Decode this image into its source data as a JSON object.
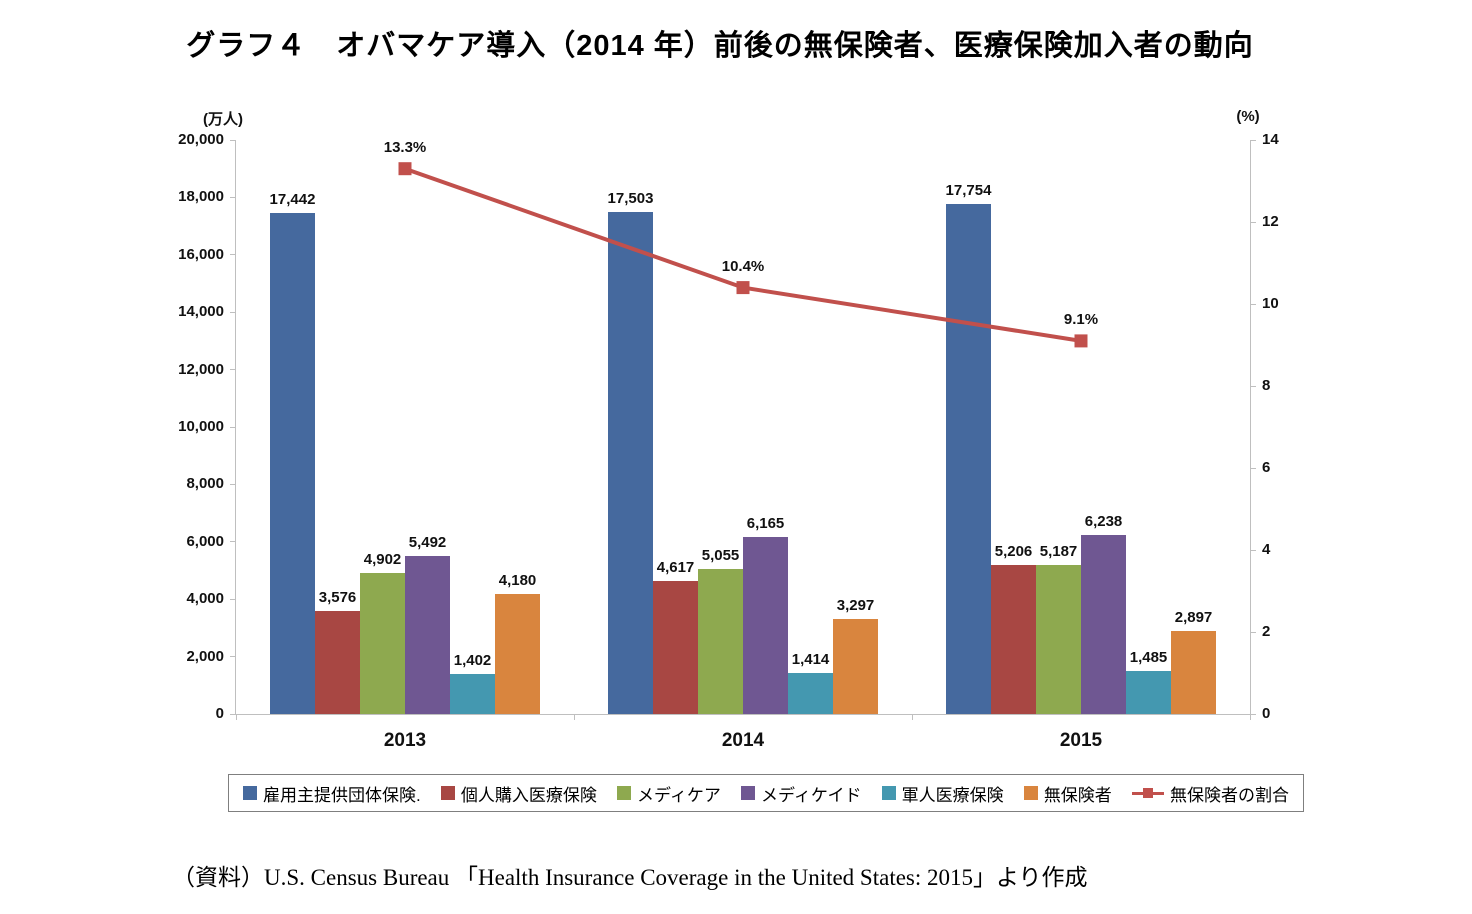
{
  "title": "グラフ４　オバマケア導入（2014 年）前後の無保険者、医療保険加入者の動向",
  "source": "（資料）U.S. Census Bureau 「Health Insurance Coverage in the United States: 2015」より作成",
  "chart_data": {
    "type": "bar",
    "subtype": "grouped-bar-with-line-combo",
    "categories": [
      "2013",
      "2014",
      "2015"
    ],
    "left_axis": {
      "caption": "(万人)",
      "min": 0,
      "max": 20000,
      "step": 2000,
      "tick_labels": [
        "20,000",
        "18,000",
        "16,000",
        "14,000",
        "12,000",
        "10,000",
        "8,000",
        "6,000",
        "4,000",
        "2,000",
        "0"
      ]
    },
    "right_axis": {
      "caption": "(%)",
      "min": 0,
      "max": 14,
      "step": 2,
      "tick_labels": [
        "14",
        "12",
        "10",
        "8",
        "6",
        "4",
        "2",
        "0"
      ]
    },
    "grid": false,
    "legend_position": "bottom",
    "series": [
      {
        "name": "雇用主提供団体保険.",
        "type": "bar",
        "color": "#45699E",
        "values": [
          17442,
          17503,
          17754
        ],
        "value_labels": [
          "17,442",
          "17,503",
          "17,754"
        ]
      },
      {
        "name": "個人購入医療保険",
        "type": "bar",
        "color": "#A84743",
        "values": [
          3576,
          4617,
          5206
        ],
        "value_labels": [
          "3,576",
          "4,617",
          "5,206"
        ]
      },
      {
        "name": "メディケア",
        "type": "bar",
        "color": "#8EA94F",
        "values": [
          4902,
          5055,
          5187
        ],
        "value_labels": [
          "4,902",
          "5,055",
          "5,187"
        ]
      },
      {
        "name": "メディケイド",
        "type": "bar",
        "color": "#6F5792",
        "values": [
          5492,
          6165,
          6238
        ],
        "value_labels": [
          "5,492",
          "6,165",
          "6,238"
        ]
      },
      {
        "name": "軍人医療保険",
        "type": "bar",
        "color": "#4498B0",
        "values": [
          1402,
          1414,
          1485
        ],
        "value_labels": [
          "1,402",
          "1,414",
          "1,485"
        ]
      },
      {
        "name": "無保険者",
        "type": "bar",
        "color": "#D9853E",
        "values": [
          4180,
          3297,
          2897
        ],
        "value_labels": [
          "4,180",
          "3,297",
          "2,897"
        ]
      },
      {
        "name": "無保険者の割合",
        "type": "line",
        "color": "#C1504C",
        "values": [
          13.3,
          10.4,
          9.1
        ],
        "value_labels": [
          "13.3%",
          "10.4%",
          "9.1%"
        ]
      }
    ]
  }
}
